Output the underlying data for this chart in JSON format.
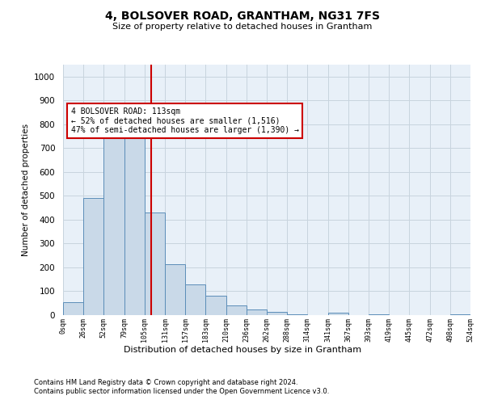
{
  "title": "4, BOLSOVER ROAD, GRANTHAM, NG31 7FS",
  "subtitle": "Size of property relative to detached houses in Grantham",
  "xlabel": "Distribution of detached houses by size in Grantham",
  "ylabel": "Number of detached properties",
  "bar_color": "#c9d9e8",
  "bar_edge_color": "#5b8db8",
  "grid_color": "#c8d4de",
  "background_color": "#e8f0f8",
  "vline_x": 113,
  "vline_color": "#cc0000",
  "annotation_text": "4 BOLSOVER ROAD: 113sqm\n← 52% of detached houses are smaller (1,516)\n47% of semi-detached houses are larger (1,390) →",
  "annotation_box_color": "#ffffff",
  "annotation_box_edge": "#cc0000",
  "bins": [
    0,
    26,
    52,
    79,
    105,
    131,
    157,
    183,
    210,
    236,
    262,
    288,
    314,
    341,
    367,
    393,
    419,
    445,
    472,
    498,
    524
  ],
  "counts": [
    55,
    490,
    760,
    800,
    430,
    215,
    130,
    80,
    40,
    25,
    15,
    5,
    0,
    10,
    0,
    5,
    0,
    0,
    0,
    5
  ],
  "ylim": [
    0,
    1050
  ],
  "yticks": [
    0,
    100,
    200,
    300,
    400,
    500,
    600,
    700,
    800,
    900,
    1000
  ],
  "footnote1": "Contains HM Land Registry data © Crown copyright and database right 2024.",
  "footnote2": "Contains public sector information licensed under the Open Government Licence v3.0."
}
